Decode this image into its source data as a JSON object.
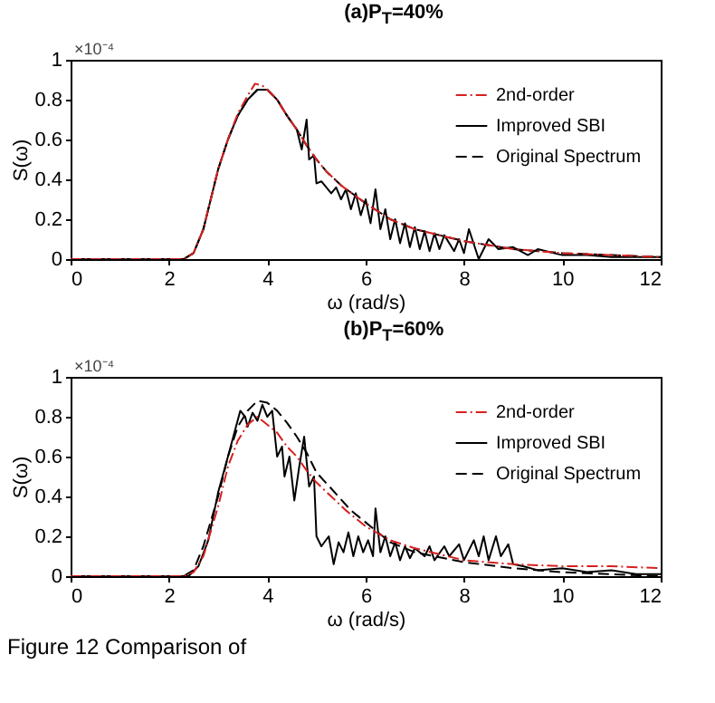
{
  "chart_data": [
    {
      "type": "line",
      "title": "(a)P$_{T}$=40%",
      "xlabel": "ω (rad/s)",
      "ylabel": "S(ω)",
      "annotations": [
        "×10⁻⁴"
      ],
      "xlim": [
        0,
        12
      ],
      "xticks": [
        0,
        2,
        4,
        6,
        8,
        10,
        12
      ],
      "ylim": [
        0,
        1
      ],
      "yticks": [
        0,
        0.2,
        0.4,
        0.6,
        0.8,
        1
      ],
      "legend": "top right",
      "grid": false,
      "marker": "none",
      "series": [
        {
          "name": "2nd-order",
          "color": "#d62020",
          "line_style": "dashdot",
          "x": [
            0,
            2.3,
            2.5,
            2.7,
            2.9,
            3.0,
            3.2,
            3.4,
            3.6,
            3.75,
            3.9,
            4.0,
            4.2,
            4.4,
            4.6,
            4.8,
            5.0,
            5.2,
            5.5,
            6.0,
            6.5,
            7,
            7.5,
            8,
            9,
            10,
            11,
            12
          ],
          "values": [
            0,
            0,
            0.03,
            0.15,
            0.35,
            0.45,
            0.6,
            0.73,
            0.82,
            0.88,
            0.87,
            0.85,
            0.8,
            0.72,
            0.65,
            0.57,
            0.5,
            0.44,
            0.37,
            0.28,
            0.2,
            0.15,
            0.12,
            0.09,
            0.05,
            0.03,
            0.02,
            0.01
          ]
        },
        {
          "name": "Improved SBI",
          "color": "#000000",
          "line_style": "solid",
          "x": [
            0,
            2.3,
            2.5,
            2.7,
            2.9,
            3.0,
            3.2,
            3.4,
            3.6,
            3.8,
            4.0,
            4.2,
            4.4,
            4.6,
            4.7,
            4.8,
            4.85,
            4.95,
            5.0,
            5.1,
            5.3,
            5.4,
            5.5,
            5.6,
            5.7,
            5.8,
            5.9,
            6.0,
            6.1,
            6.2,
            6.3,
            6.4,
            6.5,
            6.6,
            6.7,
            6.8,
            6.9,
            7.0,
            7.1,
            7.2,
            7.3,
            7.4,
            7.5,
            7.6,
            7.8,
            7.9,
            8.0,
            8.1,
            8.3,
            8.5,
            8.7,
            9,
            9.3,
            9.5,
            10,
            10.5,
            11,
            12
          ],
          "values": [
            0,
            0,
            0.03,
            0.15,
            0.35,
            0.45,
            0.6,
            0.72,
            0.8,
            0.85,
            0.85,
            0.8,
            0.72,
            0.65,
            0.55,
            0.7,
            0.5,
            0.52,
            0.38,
            0.39,
            0.33,
            0.36,
            0.3,
            0.35,
            0.25,
            0.33,
            0.22,
            0.3,
            0.18,
            0.35,
            0.15,
            0.25,
            0.1,
            0.2,
            0.08,
            0.18,
            0.06,
            0.16,
            0.05,
            0.14,
            0.04,
            0.13,
            0.05,
            0.12,
            0.04,
            0.1,
            0.03,
            0.15,
            0.0,
            0.1,
            0.05,
            0.06,
            0.02,
            0.05,
            0.02,
            0.02,
            0.01,
            0.01
          ]
        },
        {
          "name": "Original Spectrum",
          "color": "#000000",
          "line_style": "dashed",
          "x": [
            0,
            2.3,
            2.5,
            2.7,
            2.9,
            3.0,
            3.2,
            3.4,
            3.6,
            3.8,
            4.0,
            4.2,
            4.4,
            4.6,
            4.8,
            5.0,
            5.2,
            5.5,
            6.0,
            6.5,
            7,
            7.5,
            8,
            9,
            10,
            11,
            12
          ],
          "values": [
            0,
            0,
            0.03,
            0.15,
            0.35,
            0.45,
            0.6,
            0.72,
            0.8,
            0.85,
            0.85,
            0.8,
            0.72,
            0.65,
            0.57,
            0.5,
            0.44,
            0.37,
            0.28,
            0.2,
            0.15,
            0.12,
            0.09,
            0.05,
            0.03,
            0.02,
            0.01
          ]
        }
      ]
    },
    {
      "type": "line",
      "title": "(b)P$_{T}$=60%",
      "xlabel": "ω (rad/s)",
      "ylabel": "S(ω)",
      "annotations": [
        "×10⁻⁴",
        "Figure 12  Comparison of"
      ],
      "xlim": [
        0,
        12
      ],
      "xticks": [
        0,
        2,
        4,
        6,
        8,
        10,
        12
      ],
      "ylim": [
        0,
        1
      ],
      "yticks": [
        0,
        0.2,
        0.4,
        0.6,
        0.8,
        1
      ],
      "legend": "top right",
      "grid": false,
      "marker": "none",
      "series": [
        {
          "name": "2nd-order",
          "color": "#d62020",
          "line_style": "dashdot",
          "x": [
            0,
            2.3,
            2.5,
            2.7,
            3.0,
            3.2,
            3.4,
            3.6,
            3.8,
            4.0,
            4.2,
            4.4,
            4.6,
            4.8,
            5.0,
            5.3,
            5.6,
            6.0,
            6.5,
            7,
            7.5,
            8,
            9,
            10,
            11,
            12
          ],
          "values": [
            0,
            0,
            0.02,
            0.1,
            0.35,
            0.55,
            0.68,
            0.76,
            0.8,
            0.76,
            0.72,
            0.65,
            0.6,
            0.53,
            0.47,
            0.4,
            0.33,
            0.25,
            0.18,
            0.14,
            0.11,
            0.08,
            0.06,
            0.05,
            0.05,
            0.04
          ]
        },
        {
          "name": "Improved SBI",
          "color": "#000000",
          "line_style": "solid",
          "x": [
            0,
            2.4,
            2.6,
            2.8,
            3.0,
            3.2,
            3.45,
            3.55,
            3.6,
            3.7,
            3.8,
            3.9,
            4.0,
            4.1,
            4.2,
            4.3,
            4.35,
            4.45,
            4.55,
            4.65,
            4.75,
            4.85,
            4.95,
            5.0,
            5.1,
            5.25,
            5.35,
            5.45,
            5.55,
            5.65,
            5.75,
            5.85,
            5.95,
            6.05,
            6.15,
            6.2,
            6.3,
            6.4,
            6.5,
            6.6,
            6.7,
            6.8,
            6.9,
            7.0,
            7.2,
            7.3,
            7.4,
            7.6,
            7.7,
            7.9,
            8.0,
            8.2,
            8.3,
            8.4,
            8.5,
            8.65,
            8.75,
            8.9,
            9.0,
            9.2,
            9.5,
            10,
            10.5,
            11,
            11.5,
            12
          ],
          "values": [
            0,
            0,
            0.05,
            0.18,
            0.42,
            0.6,
            0.83,
            0.8,
            0.75,
            0.82,
            0.78,
            0.86,
            0.8,
            0.83,
            0.6,
            0.65,
            0.5,
            0.6,
            0.38,
            0.55,
            0.7,
            0.45,
            0.5,
            0.2,
            0.15,
            0.2,
            0.06,
            0.17,
            0.12,
            0.22,
            0.1,
            0.2,
            0.12,
            0.18,
            0.1,
            0.34,
            0.12,
            0.2,
            0.1,
            0.17,
            0.08,
            0.15,
            0.09,
            0.14,
            0.1,
            0.15,
            0.08,
            0.15,
            0.1,
            0.16,
            0.08,
            0.18,
            0.1,
            0.2,
            0.08,
            0.2,
            0.1,
            0.16,
            0.06,
            0.05,
            0.03,
            0.04,
            0.02,
            0.03,
            0.01,
            0.01
          ]
        },
        {
          "name": "Original Spectrum",
          "color": "#000000",
          "line_style": "dashed",
          "x": [
            0,
            2.3,
            2.5,
            2.7,
            3.0,
            3.2,
            3.4,
            3.6,
            3.8,
            4.0,
            4.2,
            4.4,
            4.6,
            4.8,
            5.0,
            5.3,
            5.7,
            6.0,
            6.5,
            7,
            8,
            9,
            10,
            11,
            12
          ],
          "values": [
            0,
            0,
            0.03,
            0.15,
            0.4,
            0.6,
            0.75,
            0.83,
            0.88,
            0.87,
            0.83,
            0.77,
            0.7,
            0.62,
            0.52,
            0.44,
            0.33,
            0.27,
            0.17,
            0.12,
            0.07,
            0.04,
            0.02,
            0.01,
            0
          ]
        }
      ]
    }
  ]
}
